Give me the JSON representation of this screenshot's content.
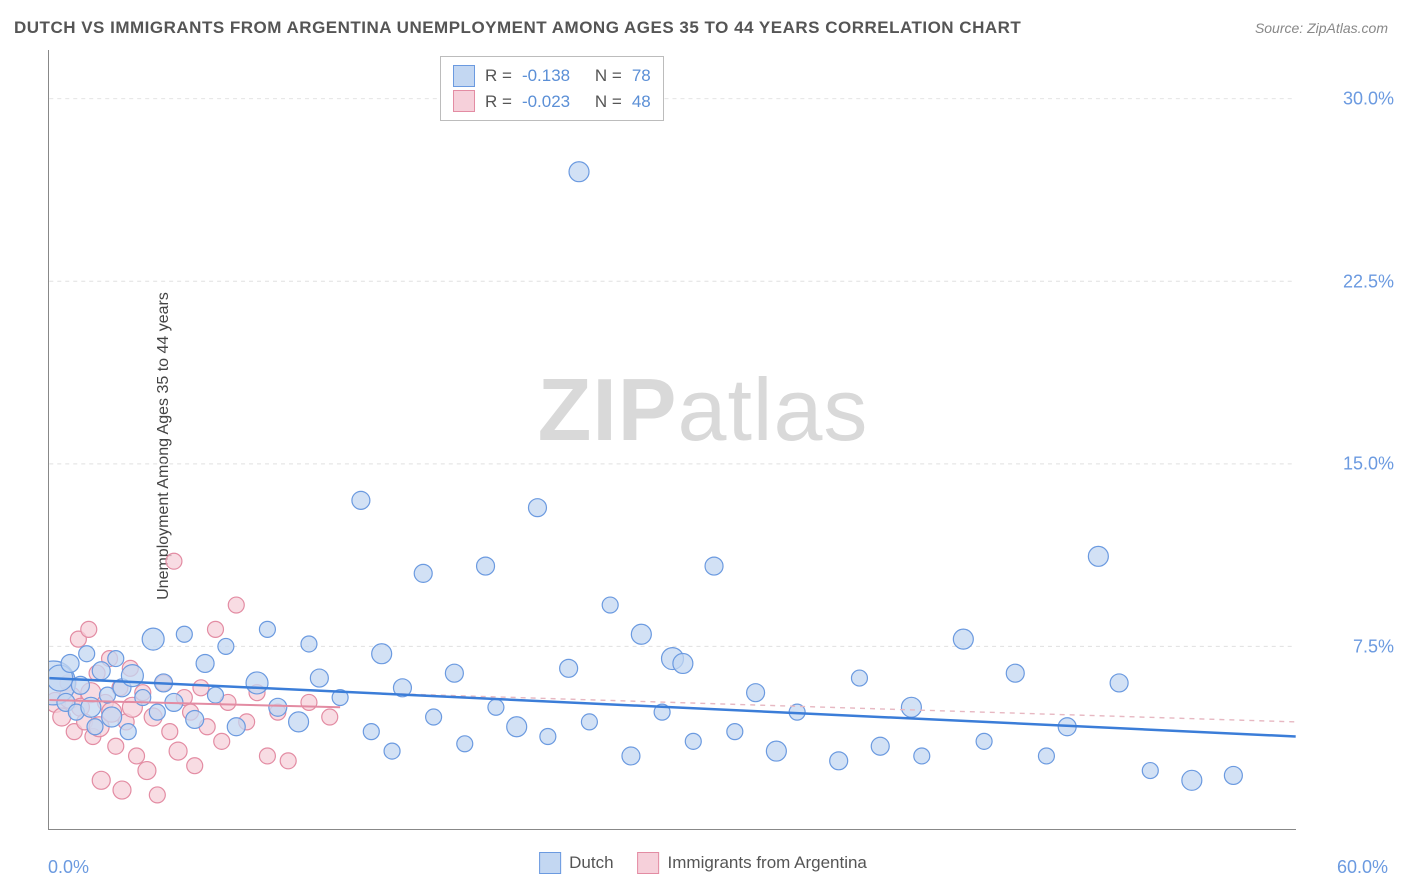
{
  "title": "DUTCH VS IMMIGRANTS FROM ARGENTINA UNEMPLOYMENT AMONG AGES 35 TO 44 YEARS CORRELATION CHART",
  "source": "Source: ZipAtlas.com",
  "ylabel": "Unemployment Among Ages 35 to 44 years",
  "watermark_bold": "ZIP",
  "watermark_rest": "atlas",
  "chart": {
    "type": "scatter",
    "xlim": [
      0,
      60
    ],
    "ylim": [
      0,
      32
    ],
    "x_tick_labels": {
      "left": "0.0%",
      "right": "60.0%"
    },
    "y_ticks": [
      7.5,
      15.0,
      22.5,
      30.0
    ],
    "y_tick_labels": [
      "7.5%",
      "15.0%",
      "22.5%",
      "30.0%"
    ],
    "background_color": "#ffffff",
    "grid_color": "#e0e0e0",
    "grid_dash": "4 4",
    "axis_color": "#888888",
    "series": [
      {
        "name": "Dutch",
        "marker_fill": "#c3d7f2",
        "marker_stroke": "#6b9ae0",
        "line_color": "#3b7dd8",
        "line_width": 2.5,
        "marker_opacity": 0.75,
        "trend": {
          "x1": 0,
          "y1": 6.2,
          "x2": 60,
          "y2": 3.8,
          "dashed": false
        },
        "trend_ext": {
          "x1": 15,
          "y1": 5.6,
          "x2": 60,
          "y2": 4.4,
          "dashed": true,
          "color": "#e7b8c2"
        },
        "R": "-0.138",
        "N": "78",
        "points": [
          {
            "x": 0.2,
            "y": 6.0,
            "r": 22
          },
          {
            "x": 0.5,
            "y": 6.2,
            "r": 13
          },
          {
            "x": 0.8,
            "y": 5.2,
            "r": 9
          },
          {
            "x": 1.0,
            "y": 6.8,
            "r": 9
          },
          {
            "x": 1.3,
            "y": 4.8,
            "r": 8
          },
          {
            "x": 1.5,
            "y": 5.9,
            "r": 9
          },
          {
            "x": 1.8,
            "y": 7.2,
            "r": 8
          },
          {
            "x": 2.0,
            "y": 5.0,
            "r": 10
          },
          {
            "x": 2.2,
            "y": 4.2,
            "r": 8
          },
          {
            "x": 2.5,
            "y": 6.5,
            "r": 9
          },
          {
            "x": 2.8,
            "y": 5.5,
            "r": 8
          },
          {
            "x": 3.0,
            "y": 4.6,
            "r": 10
          },
          {
            "x": 3.2,
            "y": 7.0,
            "r": 8
          },
          {
            "x": 3.5,
            "y": 5.8,
            "r": 9
          },
          {
            "x": 3.8,
            "y": 4.0,
            "r": 8
          },
          {
            "x": 4.0,
            "y": 6.3,
            "r": 11
          },
          {
            "x": 4.5,
            "y": 5.4,
            "r": 8
          },
          {
            "x": 5.0,
            "y": 7.8,
            "r": 11
          },
          {
            "x": 5.2,
            "y": 4.8,
            "r": 8
          },
          {
            "x": 5.5,
            "y": 6.0,
            "r": 9
          },
          {
            "x": 6.0,
            "y": 5.2,
            "r": 9
          },
          {
            "x": 6.5,
            "y": 8.0,
            "r": 8
          },
          {
            "x": 7.0,
            "y": 4.5,
            "r": 9
          },
          {
            "x": 7.5,
            "y": 6.8,
            "r": 9
          },
          {
            "x": 8.0,
            "y": 5.5,
            "r": 8
          },
          {
            "x": 8.5,
            "y": 7.5,
            "r": 8
          },
          {
            "x": 9.0,
            "y": 4.2,
            "r": 9
          },
          {
            "x": 10.0,
            "y": 6.0,
            "r": 11
          },
          {
            "x": 10.5,
            "y": 8.2,
            "r": 8
          },
          {
            "x": 11.0,
            "y": 5.0,
            "r": 9
          },
          {
            "x": 12.0,
            "y": 4.4,
            "r": 10
          },
          {
            "x": 12.5,
            "y": 7.6,
            "r": 8
          },
          {
            "x": 13.0,
            "y": 6.2,
            "r": 9
          },
          {
            "x": 14.0,
            "y": 5.4,
            "r": 8
          },
          {
            "x": 15.0,
            "y": 13.5,
            "r": 9
          },
          {
            "x": 15.5,
            "y": 4.0,
            "r": 8
          },
          {
            "x": 16.0,
            "y": 7.2,
            "r": 10
          },
          {
            "x": 16.5,
            "y": 3.2,
            "r": 8
          },
          {
            "x": 17.0,
            "y": 5.8,
            "r": 9
          },
          {
            "x": 18.0,
            "y": 10.5,
            "r": 9
          },
          {
            "x": 18.5,
            "y": 4.6,
            "r": 8
          },
          {
            "x": 19.5,
            "y": 6.4,
            "r": 9
          },
          {
            "x": 20.0,
            "y": 3.5,
            "r": 8
          },
          {
            "x": 21.0,
            "y": 10.8,
            "r": 9
          },
          {
            "x": 21.5,
            "y": 5.0,
            "r": 8
          },
          {
            "x": 22.5,
            "y": 4.2,
            "r": 10
          },
          {
            "x": 23.5,
            "y": 13.2,
            "r": 9
          },
          {
            "x": 24.0,
            "y": 3.8,
            "r": 8
          },
          {
            "x": 25.0,
            "y": 6.6,
            "r": 9
          },
          {
            "x": 25.5,
            "y": 27.0,
            "r": 10
          },
          {
            "x": 26.0,
            "y": 4.4,
            "r": 8
          },
          {
            "x": 27.0,
            "y": 9.2,
            "r": 8
          },
          {
            "x": 28.0,
            "y": 3.0,
            "r": 9
          },
          {
            "x": 28.5,
            "y": 8.0,
            "r": 10
          },
          {
            "x": 29.5,
            "y": 4.8,
            "r": 8
          },
          {
            "x": 30.0,
            "y": 7.0,
            "r": 11
          },
          {
            "x": 30.5,
            "y": 6.8,
            "r": 10
          },
          {
            "x": 31.0,
            "y": 3.6,
            "r": 8
          },
          {
            "x": 32.0,
            "y": 10.8,
            "r": 9
          },
          {
            "x": 33.0,
            "y": 4.0,
            "r": 8
          },
          {
            "x": 34.0,
            "y": 5.6,
            "r": 9
          },
          {
            "x": 35.0,
            "y": 3.2,
            "r": 10
          },
          {
            "x": 36.0,
            "y": 4.8,
            "r": 8
          },
          {
            "x": 38.0,
            "y": 2.8,
            "r": 9
          },
          {
            "x": 39.0,
            "y": 6.2,
            "r": 8
          },
          {
            "x": 40.0,
            "y": 3.4,
            "r": 9
          },
          {
            "x": 41.5,
            "y": 5.0,
            "r": 10
          },
          {
            "x": 42.0,
            "y": 3.0,
            "r": 8
          },
          {
            "x": 44.0,
            "y": 7.8,
            "r": 10
          },
          {
            "x": 45.0,
            "y": 3.6,
            "r": 8
          },
          {
            "x": 46.5,
            "y": 6.4,
            "r": 9
          },
          {
            "x": 48.0,
            "y": 3.0,
            "r": 8
          },
          {
            "x": 49.0,
            "y": 4.2,
            "r": 9
          },
          {
            "x": 50.5,
            "y": 11.2,
            "r": 10
          },
          {
            "x": 51.5,
            "y": 6.0,
            "r": 9
          },
          {
            "x": 53.0,
            "y": 2.4,
            "r": 8
          },
          {
            "x": 55.0,
            "y": 2.0,
            "r": 10
          },
          {
            "x": 57.0,
            "y": 2.2,
            "r": 9
          }
        ]
      },
      {
        "name": "Immigrants from Argentina",
        "marker_fill": "#f6d0da",
        "marker_stroke": "#e38ca3",
        "line_color": "#e38ca3",
        "line_width": 2,
        "marker_opacity": 0.75,
        "trend": {
          "x1": 0,
          "y1": 5.3,
          "x2": 14,
          "y2": 5.0,
          "dashed": false
        },
        "R": "-0.023",
        "N": "48",
        "points": [
          {
            "x": 0.3,
            "y": 5.2,
            "r": 10
          },
          {
            "x": 0.6,
            "y": 4.6,
            "r": 9
          },
          {
            "x": 0.9,
            "y": 6.0,
            "r": 8
          },
          {
            "x": 1.0,
            "y": 5.4,
            "r": 11
          },
          {
            "x": 1.2,
            "y": 4.0,
            "r": 8
          },
          {
            "x": 1.4,
            "y": 7.8,
            "r": 8
          },
          {
            "x": 1.5,
            "y": 5.0,
            "r": 9
          },
          {
            "x": 1.7,
            "y": 4.4,
            "r": 8
          },
          {
            "x": 1.9,
            "y": 8.2,
            "r": 8
          },
          {
            "x": 2.0,
            "y": 5.6,
            "r": 10
          },
          {
            "x": 2.1,
            "y": 3.8,
            "r": 8
          },
          {
            "x": 2.3,
            "y": 6.4,
            "r": 8
          },
          {
            "x": 2.4,
            "y": 4.2,
            "r": 10
          },
          {
            "x": 2.5,
            "y": 2.0,
            "r": 9
          },
          {
            "x": 2.7,
            "y": 5.2,
            "r": 8
          },
          {
            "x": 2.9,
            "y": 7.0,
            "r": 8
          },
          {
            "x": 3.0,
            "y": 4.8,
            "r": 10
          },
          {
            "x": 3.2,
            "y": 3.4,
            "r": 8
          },
          {
            "x": 3.4,
            "y": 5.8,
            "r": 8
          },
          {
            "x": 3.5,
            "y": 1.6,
            "r": 9
          },
          {
            "x": 3.7,
            "y": 4.4,
            "r": 8
          },
          {
            "x": 3.9,
            "y": 6.6,
            "r": 8
          },
          {
            "x": 4.0,
            "y": 5.0,
            "r": 10
          },
          {
            "x": 4.2,
            "y": 3.0,
            "r": 8
          },
          {
            "x": 4.5,
            "y": 5.6,
            "r": 8
          },
          {
            "x": 4.7,
            "y": 2.4,
            "r": 9
          },
          {
            "x": 5.0,
            "y": 4.6,
            "r": 9
          },
          {
            "x": 5.2,
            "y": 1.4,
            "r": 8
          },
          {
            "x": 5.5,
            "y": 6.0,
            "r": 8
          },
          {
            "x": 5.8,
            "y": 4.0,
            "r": 8
          },
          {
            "x": 6.0,
            "y": 11.0,
            "r": 8
          },
          {
            "x": 6.2,
            "y": 3.2,
            "r": 9
          },
          {
            "x": 6.5,
            "y": 5.4,
            "r": 8
          },
          {
            "x": 6.8,
            "y": 4.8,
            "r": 8
          },
          {
            "x": 7.0,
            "y": 2.6,
            "r": 8
          },
          {
            "x": 7.3,
            "y": 5.8,
            "r": 8
          },
          {
            "x": 7.6,
            "y": 4.2,
            "r": 8
          },
          {
            "x": 8.0,
            "y": 8.2,
            "r": 8
          },
          {
            "x": 8.3,
            "y": 3.6,
            "r": 8
          },
          {
            "x": 8.6,
            "y": 5.2,
            "r": 8
          },
          {
            "x": 9.0,
            "y": 9.2,
            "r": 8
          },
          {
            "x": 9.5,
            "y": 4.4,
            "r": 8
          },
          {
            "x": 10.0,
            "y": 5.6,
            "r": 8
          },
          {
            "x": 10.5,
            "y": 3.0,
            "r": 8
          },
          {
            "x": 11.0,
            "y": 4.8,
            "r": 8
          },
          {
            "x": 11.5,
            "y": 2.8,
            "r": 8
          },
          {
            "x": 12.5,
            "y": 5.2,
            "r": 8
          },
          {
            "x": 13.5,
            "y": 4.6,
            "r": 8
          }
        ]
      }
    ],
    "top_legend": {
      "R_label": "R =",
      "N_label": "N ="
    },
    "bottom_legend": {
      "series1_label": "Dutch",
      "series2_label": "Immigrants from Argentina"
    }
  }
}
